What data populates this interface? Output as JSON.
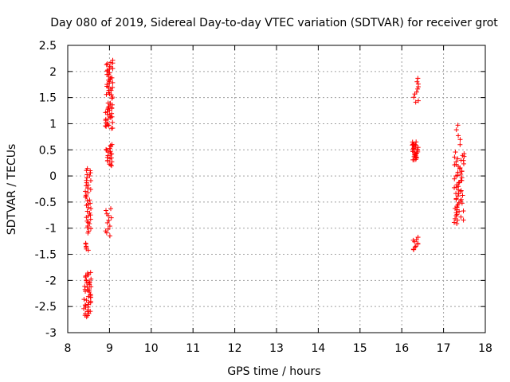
{
  "chart_data": {
    "type": "scatter",
    "title": "Day 080 of 2019, Sidereal Day-to-day VTEC variation (SDTVAR) for receiver grot",
    "xlabel": "GPS time / hours",
    "ylabel": "SDTVAR / TECUs",
    "xlim": [
      8,
      18
    ],
    "ylim": [
      -3,
      2.5
    ],
    "xticks": [
      8,
      9,
      10,
      11,
      12,
      13,
      14,
      15,
      16,
      17,
      18
    ],
    "yticks": [
      -3,
      -2.5,
      -2,
      -1.5,
      -1,
      -0.5,
      0,
      0.5,
      1,
      1.5,
      2,
      2.5
    ],
    "xtick_labels": [
      "8",
      "9",
      "10",
      "11",
      "12",
      "13",
      "14",
      "15",
      "16",
      "17",
      "18"
    ],
    "ytick_labels": [
      "-3",
      "-2.5",
      "-2",
      "-1.5",
      "-1",
      "-0.5",
      "0",
      "0.5",
      "1",
      "1.5",
      "2",
      "2.5"
    ],
    "grid": true,
    "marker": "+",
    "marker_color": "#ff0000",
    "series": [
      {
        "name": "SDTVAR",
        "clusters": [
          {
            "x_min": 8.38,
            "x_max": 8.56,
            "y_min": -2.7,
            "y_max": -1.85,
            "count": 45
          },
          {
            "x_min": 8.4,
            "x_max": 8.5,
            "y_min": -1.42,
            "y_max": -1.28,
            "count": 6
          },
          {
            "x_min": 8.42,
            "x_max": 8.56,
            "y_min": -1.08,
            "y_max": 0.15,
            "count": 40
          },
          {
            "x_min": 8.9,
            "x_max": 9.08,
            "y_min": -1.15,
            "y_max": -0.62,
            "count": 12
          },
          {
            "x_min": 8.9,
            "x_max": 9.06,
            "y_min": 0.2,
            "y_max": 0.6,
            "count": 20
          },
          {
            "x_min": 8.9,
            "x_max": 9.08,
            "y_min": 0.9,
            "y_max": 1.4,
            "count": 30
          },
          {
            "x_min": 8.92,
            "x_max": 9.08,
            "y_min": 1.5,
            "y_max": 2.2,
            "count": 35
          },
          {
            "x_min": 16.25,
            "x_max": 16.4,
            "y_min": -1.42,
            "y_max": -1.18,
            "count": 10
          },
          {
            "x_min": 16.25,
            "x_max": 16.4,
            "y_min": 0.3,
            "y_max": 0.65,
            "count": 30
          },
          {
            "x_min": 16.28,
            "x_max": 16.4,
            "y_min": 1.4,
            "y_max": 1.87,
            "count": 10
          },
          {
            "x_min": 17.25,
            "x_max": 17.5,
            "y_min": -0.9,
            "y_max": 0.45,
            "count": 60
          },
          {
            "x_min": 17.3,
            "x_max": 17.4,
            "y_min": 0.6,
            "y_max": 0.97,
            "count": 5
          }
        ]
      }
    ]
  }
}
